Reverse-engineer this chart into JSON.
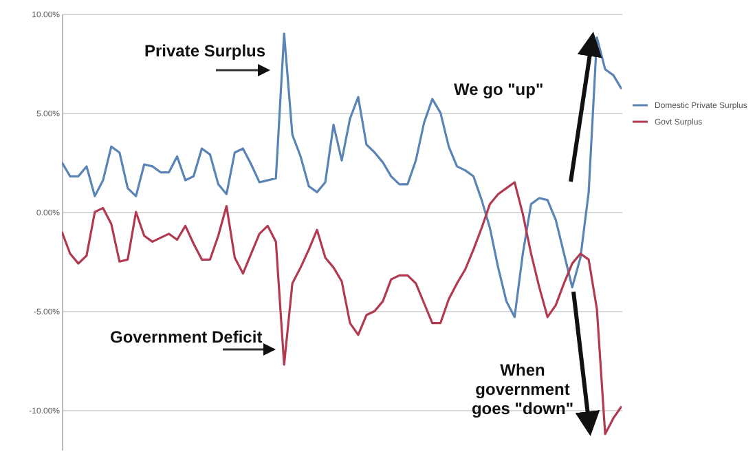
{
  "chart_data": {
    "type": "line",
    "annotations": [
      "Private Surplus",
      "We go \"up\"",
      "Government Deficit",
      "When government goes \"down\""
    ],
    "categories": [
      null,
      null,
      null,
      null,
      null,
      null,
      null,
      null,
      null,
      null,
      null,
      null,
      null,
      null,
      null,
      null,
      null,
      null,
      null,
      null,
      null,
      null,
      null,
      null,
      null,
      null,
      null,
      null,
      null,
      null,
      null,
      null,
      null,
      null,
      null,
      null,
      null,
      null,
      null,
      null,
      null,
      null,
      null,
      null,
      null,
      null,
      null,
      null,
      null,
      null,
      null,
      null,
      null,
      null,
      null,
      null,
      null,
      null,
      null,
      null,
      null,
      null,
      null,
      null,
      null,
      null,
      null,
      null,
      null
    ],
    "ylim": [
      -12,
      10
    ],
    "yticks": [
      {
        "value": 10,
        "label": "10.00%"
      },
      {
        "value": 5,
        "label": "5.00%"
      },
      {
        "value": 0,
        "label": "0.00%"
      },
      {
        "value": -5,
        "label": "-5.00%"
      },
      {
        "value": -10,
        "label": "-10.00%"
      }
    ],
    "tick_labels": "y",
    "grid": "y",
    "legend": "right",
    "series": [
      {
        "name": "Domestic Private Surplus",
        "color": "#5a84b5",
        "values": [
          2.5,
          1.8,
          1.8,
          2.3,
          0.8,
          1.6,
          3.3,
          3.0,
          1.2,
          0.8,
          2.4,
          2.3,
          2.0,
          2.0,
          2.8,
          1.6,
          1.8,
          3.2,
          2.9,
          1.4,
          0.9,
          3.0,
          3.2,
          2.4,
          1.5,
          1.6,
          1.7,
          9.0,
          3.9,
          2.8,
          1.3,
          1.0,
          1.5,
          4.4,
          2.6,
          4.7,
          5.8,
          3.4,
          3.0,
          2.5,
          1.8,
          1.4,
          1.4,
          2.6,
          4.5,
          5.7,
          5.0,
          3.3,
          2.3,
          2.1,
          1.8,
          0.6,
          -0.8,
          -2.8,
          -4.5,
          -5.3,
          -2.1,
          0.4,
          0.7,
          0.6,
          -0.4,
          -2.1,
          -3.8,
          -2.3,
          1.0,
          8.8,
          7.2,
          6.9,
          6.2
        ]
      },
      {
        "name": "Govt Surplus",
        "color": "#b23a50",
        "values": [
          -1.0,
          -2.1,
          -2.6,
          -2.2,
          0.0,
          0.2,
          -0.6,
          -2.5,
          -2.4,
          0.0,
          -1.2,
          -1.5,
          -1.3,
          -1.1,
          -1.4,
          -0.7,
          -1.6,
          -2.4,
          -2.4,
          -1.2,
          0.3,
          -2.3,
          -3.1,
          -2.1,
          -1.1,
          -0.7,
          -1.5,
          -7.7,
          -3.6,
          -2.8,
          -1.9,
          -0.9,
          -2.3,
          -2.8,
          -3.5,
          -5.6,
          -6.2,
          -5.2,
          -5.0,
          -4.5,
          -3.4,
          -3.2,
          -3.2,
          -3.6,
          -4.6,
          -5.6,
          -5.6,
          -4.4,
          -3.6,
          -2.9,
          -1.9,
          -0.8,
          0.4,
          0.9,
          1.2,
          1.5,
          -0.1,
          -2.1,
          -3.8,
          -5.3,
          -4.7,
          -3.6,
          -2.6,
          -2.1,
          -2.4,
          -4.9,
          -11.2,
          -10.4,
          -9.8
        ]
      }
    ]
  }
}
